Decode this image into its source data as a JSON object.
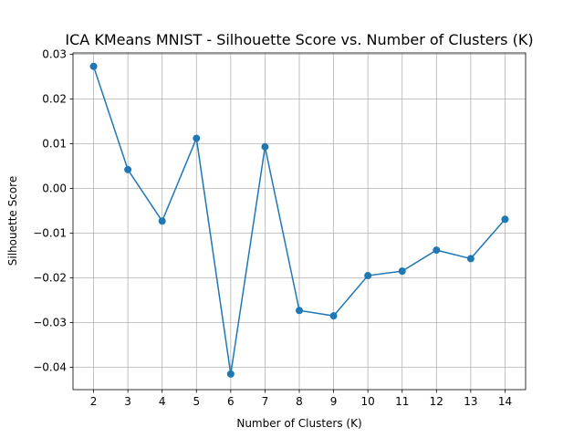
{
  "chart_data": {
    "type": "line",
    "title": "ICA KMeans MNIST - Silhouette Score vs. Number of Clusters (K)",
    "xlabel": "Number of Clusters (K)",
    "ylabel": "Silhouette Score",
    "x": [
      2,
      3,
      4,
      5,
      6,
      7,
      8,
      9,
      10,
      11,
      12,
      13,
      14
    ],
    "series": [
      {
        "values": [
          0.0273,
          0.0042,
          -0.0073,
          0.0112,
          -0.0415,
          0.0093,
          -0.0273,
          -0.0285,
          -0.0195,
          -0.0185,
          -0.0138,
          -0.0157,
          -0.0069
        ]
      }
    ],
    "xticks": [
      "2",
      "3",
      "4",
      "5",
      "6",
      "7",
      "8",
      "9",
      "10",
      "11",
      "12",
      "13",
      "14"
    ],
    "yticks": [
      "0.03",
      "0.02",
      "0.01",
      "0.00",
      "−0.01",
      "−0.02",
      "−0.03",
      "−0.04"
    ],
    "ytick_values": [
      0.03,
      0.02,
      0.01,
      0.0,
      -0.01,
      -0.02,
      -0.03,
      -0.04
    ],
    "xlim": [
      1.4,
      14.6
    ],
    "ylim": [
      -0.045,
      0.0303
    ],
    "grid": true,
    "line_color": "#1f77b4"
  }
}
